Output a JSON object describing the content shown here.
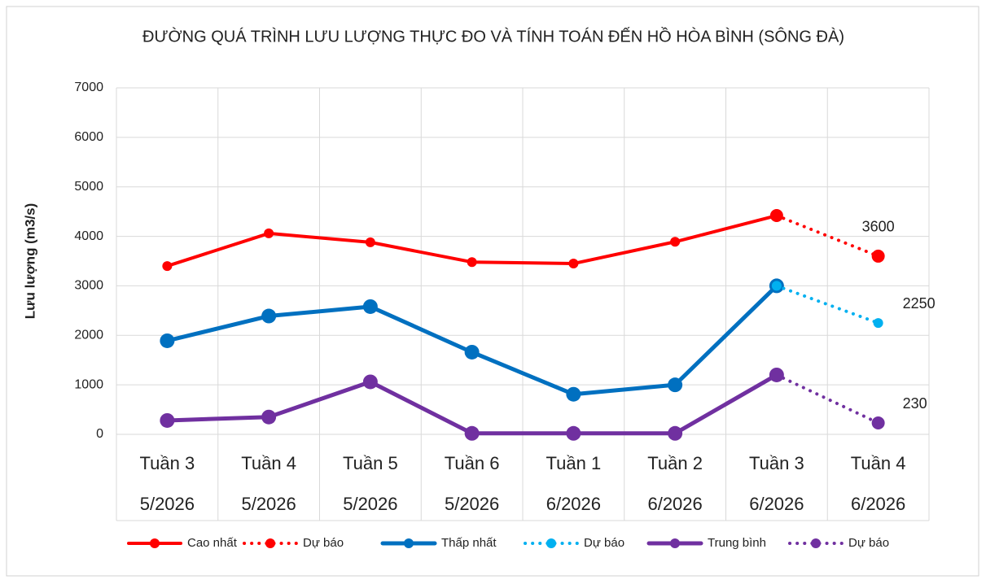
{
  "chart_data": {
    "type": "line",
    "title": "ĐƯỜNG QUÁ TRÌNH LƯU LƯỢNG THỰC ĐO VÀ TÍNH TOÁN ĐẾN HỒ HÒA BÌNH (SÔNG ĐÀ)",
    "y_label": "Lưu lượng (m3/s)",
    "categories": [
      [
        "Tuần 3",
        "5/2026"
      ],
      [
        "Tuần 4",
        "5/2026"
      ],
      [
        "Tuần 5",
        "5/2026"
      ],
      [
        "Tuần 6",
        "5/2026"
      ],
      [
        "Tuần 1",
        "6/2026"
      ],
      [
        "Tuần 2",
        "6/2026"
      ],
      [
        "Tuần 3",
        "6/2026"
      ],
      [
        "Tuần 4",
        "6/2026"
      ]
    ],
    "ylim": [
      0,
      7000
    ],
    "yticks": [
      0,
      1000,
      2000,
      3000,
      4000,
      5000,
      6000,
      7000
    ],
    "grid": true,
    "legend": "bottom",
    "series": [
      {
        "name": "Cao nhất",
        "color": "#ff0000",
        "dashed": false,
        "line_width": 4,
        "marker_radius": 6,
        "values": [
          3400,
          4060,
          3880,
          3480,
          3450,
          3890,
          4420,
          null
        ]
      },
      {
        "name": "Dự báo",
        "color": "#ff0000",
        "dashed": true,
        "line_width": 4,
        "marker_radius": 8,
        "values": [
          null,
          null,
          null,
          null,
          null,
          null,
          4420,
          3600
        ],
        "label_last": "above"
      },
      {
        "name": "Thấp nhất",
        "color": "#0070c0",
        "dashed": false,
        "line_width": 5,
        "marker_radius": 9,
        "values": [
          1890,
          2390,
          2580,
          1660,
          810,
          1000,
          3000,
          null
        ]
      },
      {
        "name": "Dự báo",
        "color": "#00b0f0",
        "dashed": true,
        "line_width": 4,
        "marker_radius": 6,
        "values": [
          null,
          null,
          null,
          null,
          null,
          null,
          3000,
          2250
        ],
        "label_last": "right"
      },
      {
        "name": "Trung bình",
        "color": "#7030a0",
        "dashed": false,
        "line_width": 5,
        "marker_radius": 9,
        "values": [
          280,
          350,
          1060,
          20,
          20,
          20,
          1200,
          null
        ]
      },
      {
        "name": "Dự báo",
        "color": "#7030a0",
        "dashed": true,
        "line_width": 4,
        "marker_radius": 8,
        "values": [
          null,
          null,
          null,
          null,
          null,
          null,
          1200,
          230
        ],
        "label_last": "right"
      }
    ]
  }
}
